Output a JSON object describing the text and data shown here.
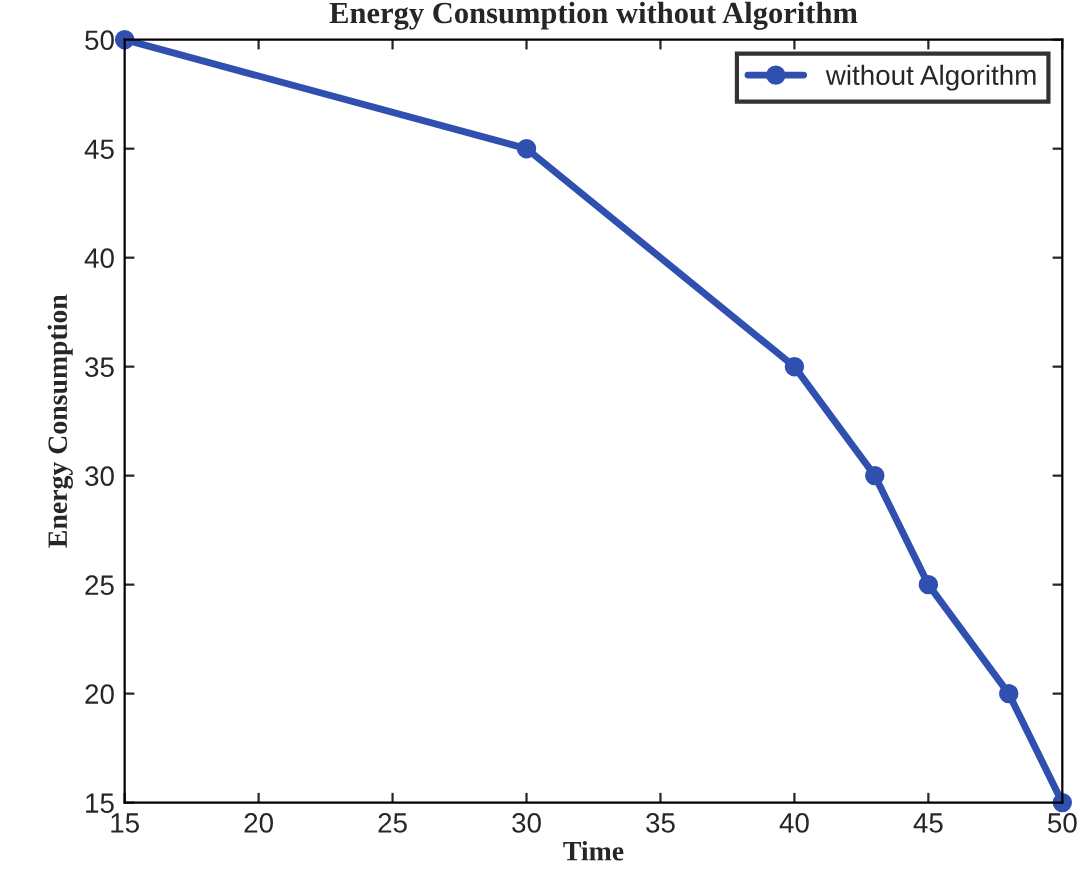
{
  "chart_data": {
    "type": "line",
    "title": "Energy Consumption without Algorithm",
    "xlabel": "Time",
    "ylabel": "Energy Consumption",
    "x": [
      15,
      30,
      40,
      43,
      45,
      48,
      50
    ],
    "series": [
      {
        "name": "without Algorithm",
        "color": "#3050b0",
        "values": [
          50,
          45,
          35,
          30,
          25,
          20,
          15
        ]
      }
    ],
    "xlim": [
      15,
      50
    ],
    "ylim": [
      15,
      50
    ],
    "xticks": [
      15,
      20,
      25,
      30,
      35,
      40,
      45,
      50
    ],
    "yticks": [
      15,
      20,
      25,
      30,
      35,
      40,
      45,
      50
    ],
    "grid": false,
    "legend": "top right",
    "marker": "circle",
    "line_style": "solid"
  }
}
